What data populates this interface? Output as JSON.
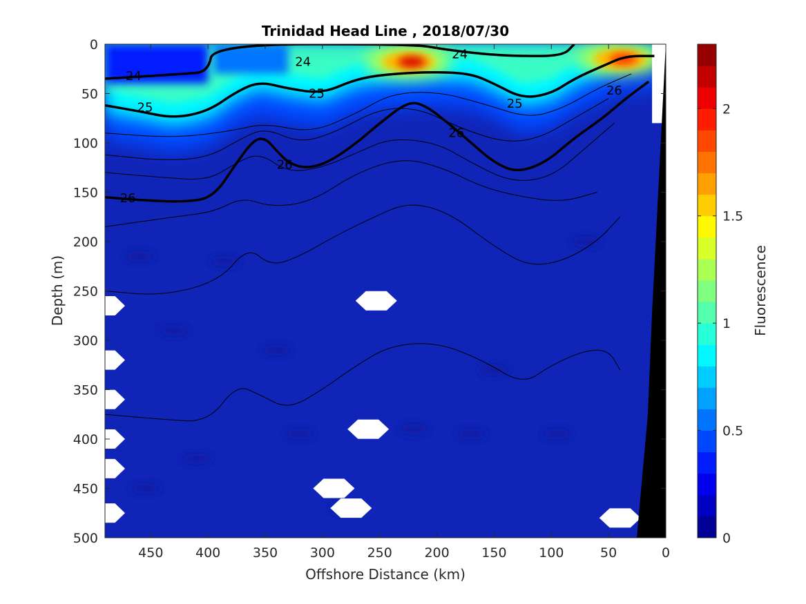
{
  "chart_data": {
    "type": "heatmap",
    "title": "Trinidad Head Line , 2018/07/30",
    "xlabel": "Offshore Distance (km)",
    "ylabel": "Depth (m)",
    "colorbar_label": "Fluorescence",
    "xlim": [
      490,
      0
    ],
    "ylim": [
      0,
      500
    ],
    "x_ticks": [
      450,
      400,
      350,
      300,
      250,
      200,
      150,
      100,
      50,
      0
    ],
    "y_ticks": [
      0,
      50,
      100,
      150,
      200,
      250,
      300,
      350,
      400,
      450,
      500
    ],
    "colorbar_range": [
      0,
      2.3
    ],
    "colorbar_ticks": [
      0,
      0.5,
      1,
      1.5,
      2
    ],
    "colormap": "jet",
    "background_value_color": "#0f22b4",
    "surface_chlorophyll_maxima": [
      {
        "x_km": 225,
        "depth_m": 18,
        "value": 2.1
      },
      {
        "x_km": 40,
        "depth_m": 15,
        "value": 1.9
      }
    ],
    "density_contours": [
      {
        "label": "24",
        "points": [
          [
            490,
            35
          ],
          [
            420,
            30
          ],
          [
            400,
            28
          ],
          [
            395,
            0
          ],
          [
            220,
            0
          ],
          [
            195,
            5
          ],
          [
            160,
            10
          ],
          [
            130,
            12
          ],
          [
            90,
            12
          ],
          [
            80,
            0
          ]
        ]
      },
      {
        "label": "25",
        "points": [
          [
            490,
            62
          ],
          [
            460,
            68
          ],
          [
            430,
            75
          ],
          [
            400,
            68
          ],
          [
            375,
            48
          ],
          [
            355,
            38
          ],
          [
            330,
            45
          ],
          [
            300,
            50
          ],
          [
            270,
            35
          ],
          [
            240,
            30
          ],
          [
            200,
            28
          ],
          [
            170,
            30
          ],
          [
            150,
            40
          ],
          [
            125,
            55
          ],
          [
            100,
            50
          ],
          [
            80,
            35
          ],
          [
            55,
            22
          ],
          [
            35,
            12
          ],
          [
            10,
            12
          ]
        ]
      },
      {
        "label": "26",
        "points": [
          [
            490,
            155
          ],
          [
            460,
            158
          ],
          [
            420,
            160
          ],
          [
            395,
            155
          ],
          [
            375,
            120
          ],
          [
            360,
            97
          ],
          [
            350,
            95
          ],
          [
            340,
            108
          ],
          [
            330,
            120
          ],
          [
            315,
            126
          ],
          [
            295,
            120
          ],
          [
            270,
            100
          ],
          [
            250,
            80
          ],
          [
            225,
            58
          ],
          [
            210,
            62
          ],
          [
            190,
            80
          ],
          [
            170,
            100
          ],
          [
            150,
            120
          ],
          [
            130,
            130
          ],
          [
            105,
            120
          ],
          [
            80,
            95
          ],
          [
            55,
            75
          ],
          [
            35,
            55
          ],
          [
            15,
            38
          ]
        ]
      }
    ],
    "thin_contours": [
      [
        [
          490,
          90
        ],
        [
          430,
          95
        ],
        [
          380,
          88
        ],
        [
          350,
          80
        ],
        [
          310,
          90
        ],
        [
          270,
          70
        ],
        [
          240,
          50
        ],
        [
          200,
          48
        ],
        [
          160,
          60
        ],
        [
          120,
          75
        ],
        [
          90,
          65
        ],
        [
          60,
          45
        ],
        [
          30,
          30
        ]
      ],
      [
        [
          490,
          112
        ],
        [
          440,
          118
        ],
        [
          400,
          115
        ],
        [
          370,
          95
        ],
        [
          350,
          85
        ],
        [
          320,
          100
        ],
        [
          290,
          90
        ],
        [
          250,
          65
        ],
        [
          215,
          65
        ],
        [
          180,
          85
        ],
        [
          140,
          100
        ],
        [
          110,
          95
        ],
        [
          80,
          75
        ],
        [
          50,
          55
        ]
      ],
      [
        [
          490,
          130
        ],
        [
          440,
          135
        ],
        [
          400,
          138
        ],
        [
          375,
          120
        ],
        [
          355,
          110
        ],
        [
          330,
          130
        ],
        [
          300,
          125
        ],
        [
          270,
          110
        ],
        [
          240,
          95
        ],
        [
          200,
          100
        ],
        [
          170,
          120
        ],
        [
          135,
          140
        ],
        [
          100,
          135
        ],
        [
          70,
          105
        ],
        [
          45,
          80
        ]
      ],
      [
        [
          490,
          185
        ],
        [
          430,
          175
        ],
        [
          395,
          170
        ],
        [
          370,
          155
        ],
        [
          345,
          165
        ],
        [
          310,
          160
        ],
        [
          270,
          130
        ],
        [
          230,
          115
        ],
        [
          195,
          125
        ],
        [
          160,
          145
        ],
        [
          125,
          155
        ],
        [
          90,
          160
        ],
        [
          60,
          150
        ]
      ],
      [
        [
          490,
          250
        ],
        [
          440,
          255
        ],
        [
          390,
          240
        ],
        [
          365,
          205
        ],
        [
          345,
          225
        ],
        [
          320,
          215
        ],
        [
          290,
          195
        ],
        [
          255,
          175
        ],
        [
          225,
          160
        ],
        [
          190,
          170
        ],
        [
          150,
          205
        ],
        [
          120,
          225
        ],
        [
          90,
          220
        ],
        [
          60,
          200
        ],
        [
          40,
          175
        ]
      ],
      [
        [
          490,
          375
        ],
        [
          440,
          380
        ],
        [
          400,
          383
        ],
        [
          375,
          345
        ],
        [
          355,
          355
        ],
        [
          330,
          370
        ],
        [
          300,
          350
        ],
        [
          270,
          325
        ],
        [
          240,
          305
        ],
        [
          200,
          302
        ],
        [
          160,
          320
        ],
        [
          125,
          345
        ],
        [
          100,
          325
        ],
        [
          70,
          310
        ],
        [
          50,
          310
        ],
        [
          40,
          330
        ]
      ]
    ],
    "contour_labels": [
      {
        "text": "24",
        "x_km": 465,
        "depth_m": 32
      },
      {
        "text": "24",
        "x_km": 317,
        "depth_m": 18
      },
      {
        "text": "24",
        "x_km": 180,
        "depth_m": 10
      },
      {
        "text": "25",
        "x_km": 455,
        "depth_m": 64
      },
      {
        "text": "25",
        "x_km": 305,
        "depth_m": 50
      },
      {
        "text": "25",
        "x_km": 132,
        "depth_m": 60
      },
      {
        "text": "26",
        "x_km": 470,
        "depth_m": 156
      },
      {
        "text": "26",
        "x_km": 333,
        "depth_m": 122
      },
      {
        "text": "26",
        "x_km": 183,
        "depth_m": 90
      },
      {
        "text": "26",
        "x_km": 45,
        "depth_m": 47
      }
    ],
    "no_data_patches": [
      {
        "x_km": 253,
        "depth_m": 260
      },
      {
        "x_km": 260,
        "depth_m": 390
      },
      {
        "x_km": 290,
        "depth_m": 450
      },
      {
        "x_km": 275,
        "depth_m": 470
      },
      {
        "x_km": 40,
        "depth_m": 480
      }
    ],
    "edge_no_data_depths_m": [
      265,
      320,
      360,
      400,
      430,
      475
    ]
  }
}
